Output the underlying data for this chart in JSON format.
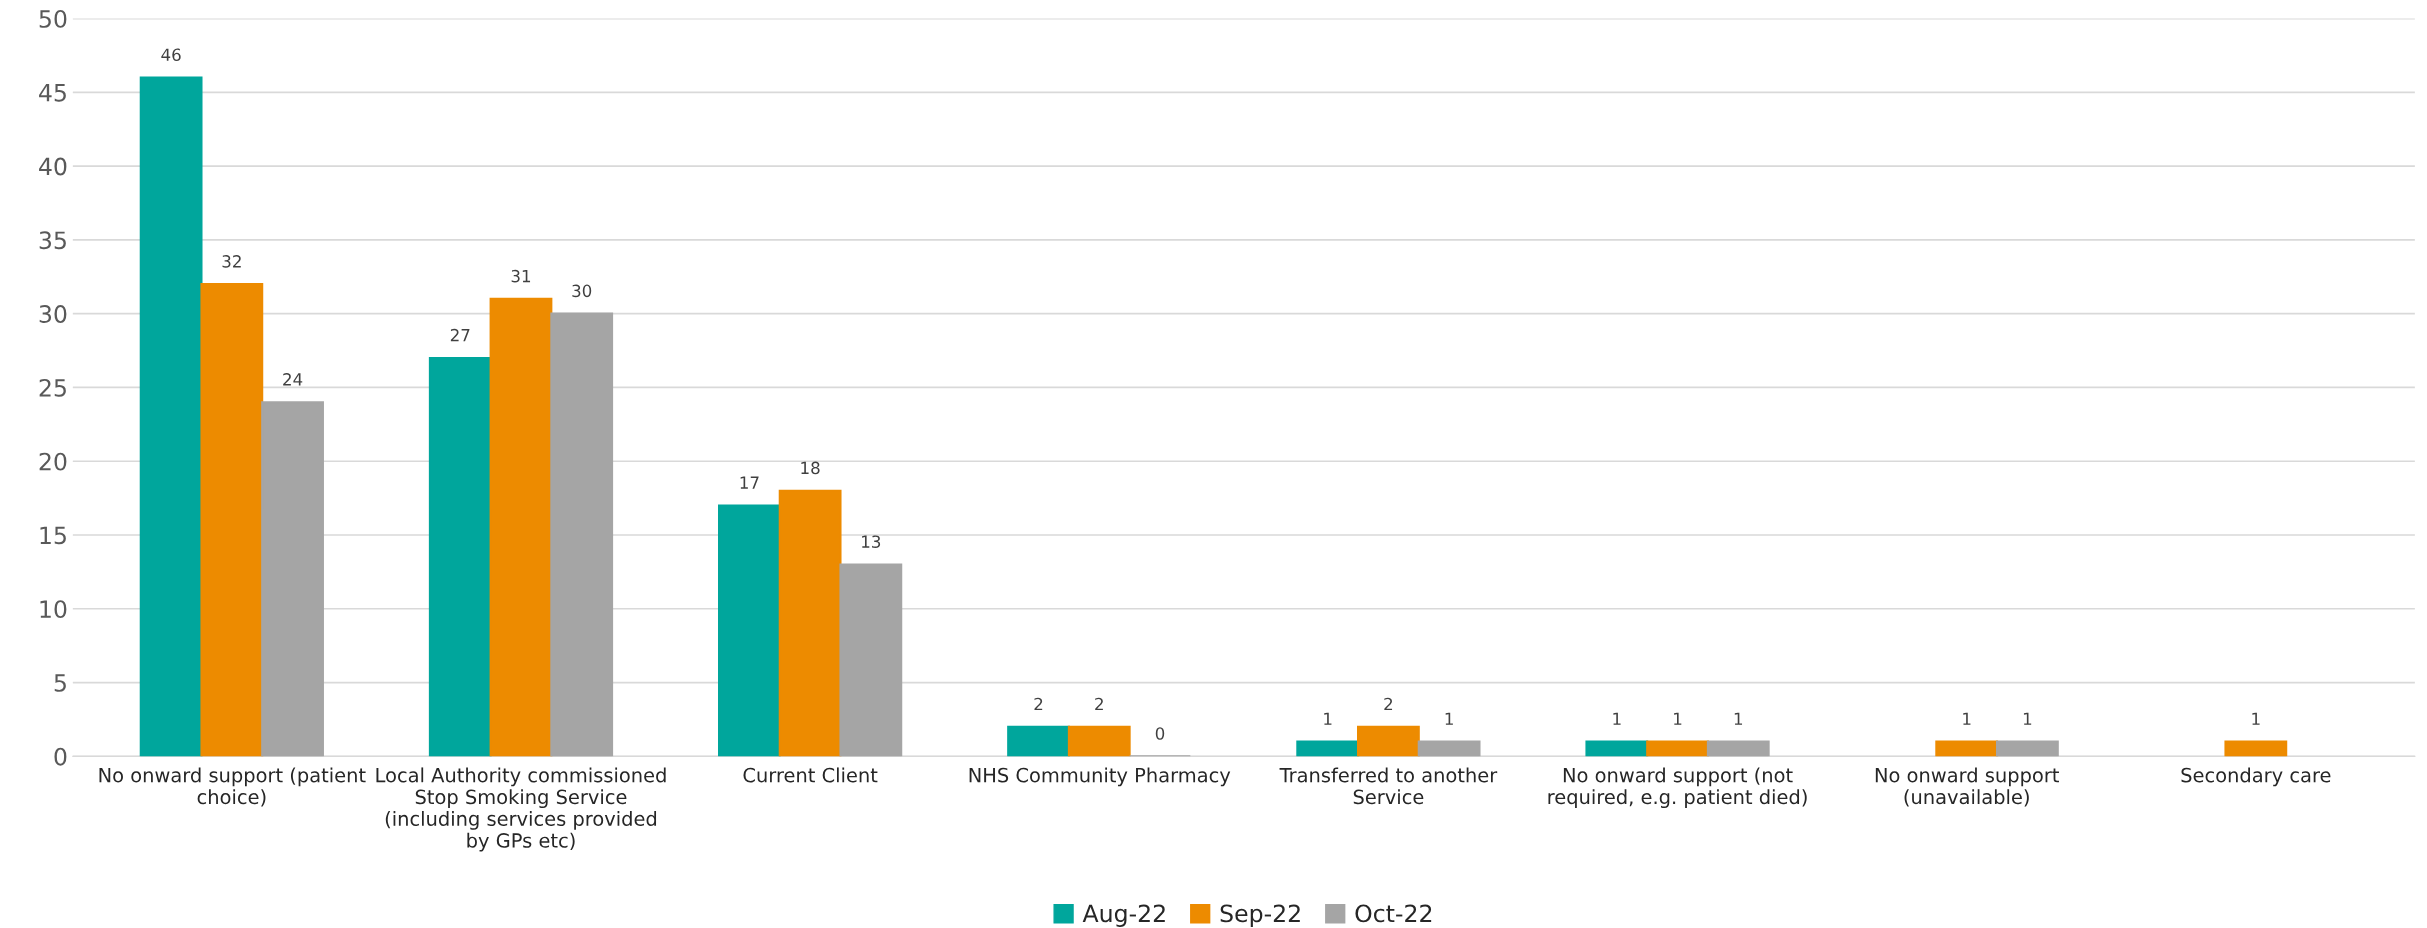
{
  "chart_data": {
    "type": "bar",
    "categories": [
      "No onward support (patient choice)",
      "Local Authority commissioned Stop Smoking Service (including services provided by GPs etc)",
      "Current Client",
      "NHS Community Pharmacy",
      "Transferred to another Service",
      "No onward support (not required, e.g. patient died)",
      "No onward support (unavailable)",
      "Secondary care"
    ],
    "series": [
      {
        "name": "Aug-22",
        "color": "#00a69c",
        "values": [
          46,
          27,
          17,
          2,
          1,
          1,
          null,
          null
        ]
      },
      {
        "name": "Sep-22",
        "color": "#ed8b00",
        "values": [
          32,
          31,
          18,
          2,
          2,
          1,
          1,
          1
        ]
      },
      {
        "name": "Oct-22",
        "color": "#a5a5a5",
        "values": [
          24,
          30,
          13,
          0,
          1,
          1,
          1,
          null
        ]
      }
    ],
    "ylim": [
      0,
      50
    ],
    "yticks": [
      0,
      5,
      10,
      15,
      20,
      25,
      30,
      35,
      40,
      45,
      50
    ],
    "grid": "y",
    "legend": "bottom",
    "data_labels": true
  }
}
